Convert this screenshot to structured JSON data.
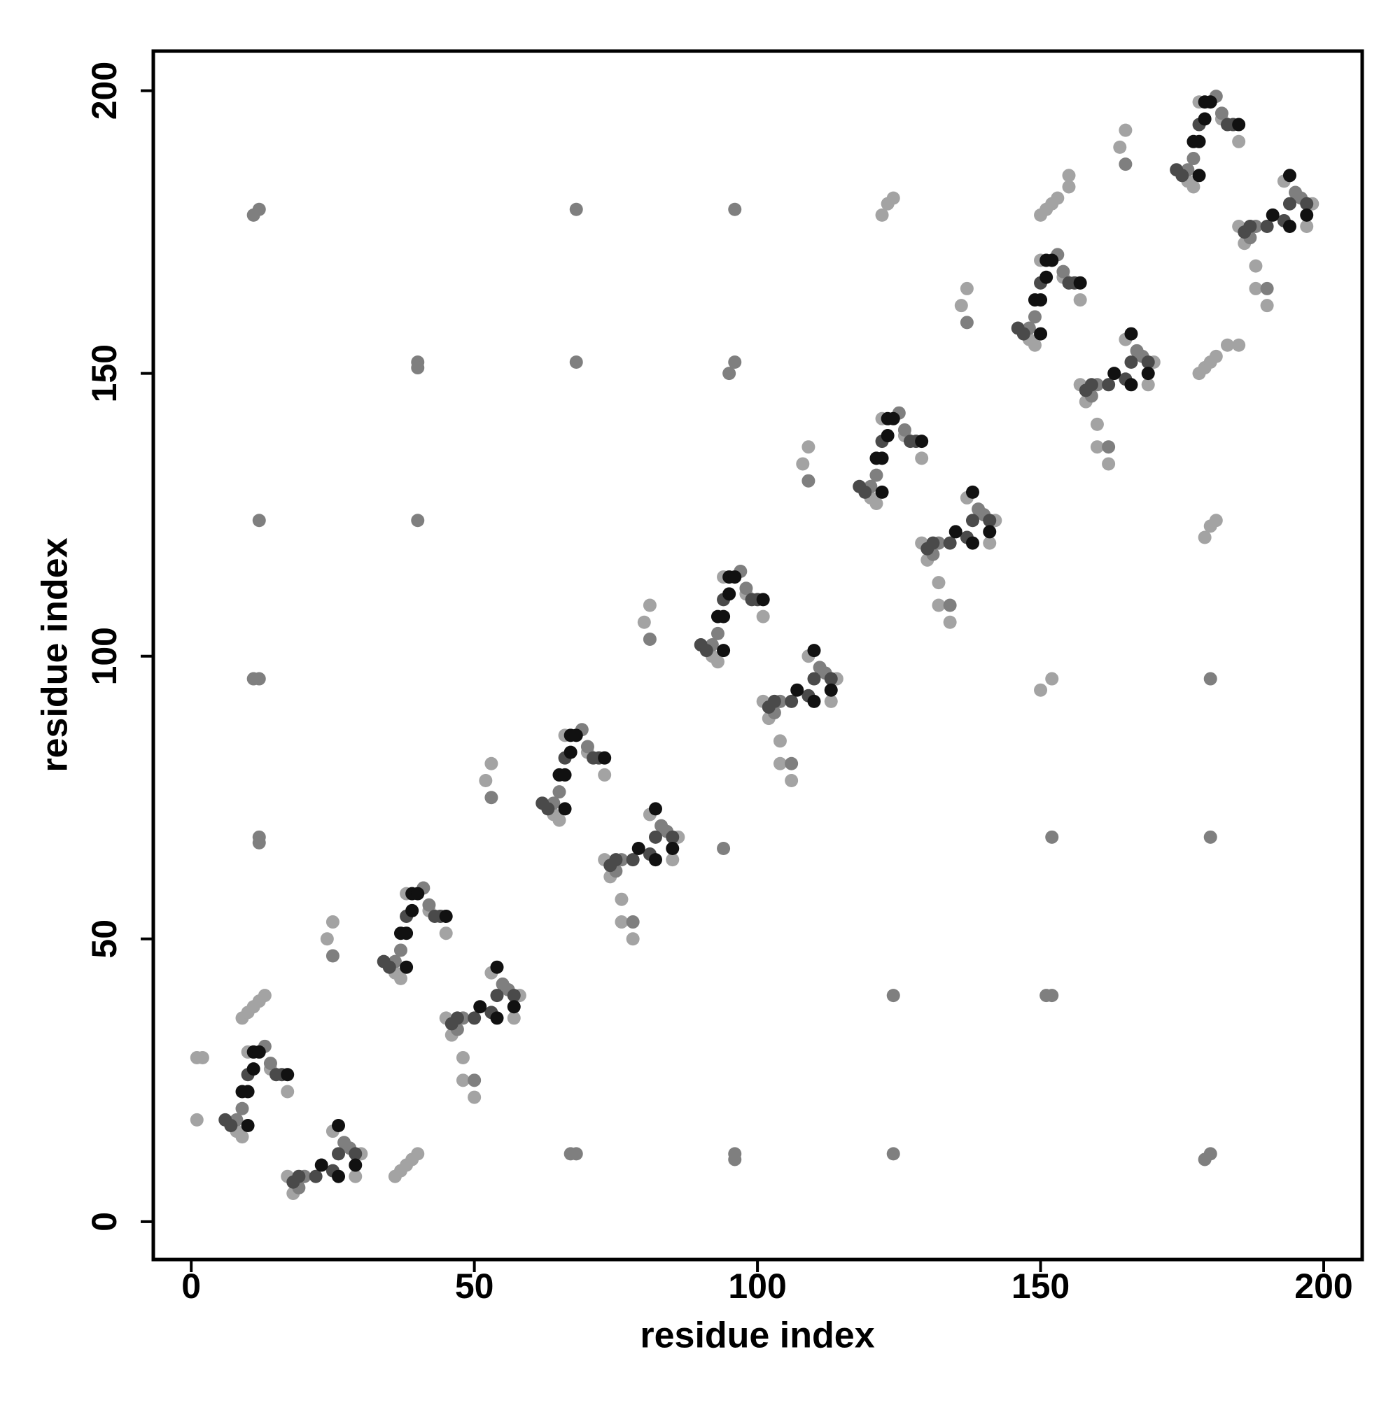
{
  "chart_data": {
    "type": "scatter",
    "xlabel": "residue index",
    "ylabel": "residue index",
    "xlim": [
      -6.7,
      206.8
    ],
    "ylim": [
      -6.7,
      207
    ],
    "xticks": [
      0,
      50,
      100,
      150,
      200
    ],
    "yticks": [
      0,
      50,
      100,
      150,
      200
    ],
    "grid": false,
    "series": [
      {
        "color": "#a3a3a3",
        "x": [
          8,
          9,
          10,
          14,
          17,
          36,
          37,
          38,
          42,
          45,
          24,
          25,
          64,
          65,
          66,
          70,
          73,
          52,
          53,
          92,
          93,
          94,
          98,
          101,
          80,
          81,
          120,
          121,
          122,
          126,
          129,
          108,
          109,
          148,
          149,
          150,
          154,
          157,
          136,
          137,
          176,
          177,
          178,
          182,
          185,
          164,
          165,
          17,
          18,
          25,
          30,
          29,
          45,
          46,
          53,
          58,
          57,
          48,
          48,
          50,
          73,
          74,
          81,
          86,
          85,
          76,
          76,
          78,
          101,
          102,
          109,
          114,
          113,
          104,
          104,
          106,
          129,
          130,
          137,
          142,
          141,
          132,
          132,
          134,
          157,
          158,
          165,
          170,
          169,
          160,
          160,
          162,
          185,
          186,
          193,
          198,
          197,
          188,
          188,
          190,
          1,
          2,
          1,
          152,
          150,
          9,
          10,
          11,
          12,
          13,
          36,
          37,
          38,
          39,
          40,
          150,
          151,
          152,
          153,
          155,
          155,
          178,
          179,
          180,
          181,
          183,
          185,
          122,
          123,
          124,
          179,
          180,
          181
        ],
        "y": [
          16,
          15,
          30,
          27,
          23,
          44,
          43,
          58,
          55,
          51,
          50,
          53,
          72,
          71,
          86,
          83,
          79,
          78,
          81,
          100,
          99,
          114,
          111,
          107,
          106,
          109,
          128,
          127,
          142,
          139,
          135,
          134,
          137,
          156,
          155,
          170,
          167,
          163,
          162,
          165,
          184,
          183,
          198,
          195,
          191,
          190,
          193,
          8,
          5,
          16,
          12,
          8,
          36,
          33,
          44,
          40,
          36,
          29,
          25,
          22,
          64,
          61,
          72,
          68,
          64,
          57,
          53,
          50,
          92,
          89,
          100,
          96,
          92,
          85,
          81,
          78,
          120,
          117,
          128,
          124,
          120,
          113,
          109,
          106,
          148,
          145,
          156,
          152,
          148,
          141,
          137,
          134,
          176,
          173,
          184,
          180,
          176,
          169,
          165,
          162,
          29,
          29,
          18,
          96,
          94,
          36,
          37,
          38,
          39,
          40,
          8,
          9,
          10,
          11,
          12,
          178,
          179,
          180,
          181,
          183,
          185,
          150,
          151,
          152,
          153,
          155,
          155,
          178,
          180,
          181,
          121,
          123,
          124
        ]
      },
      {
        "color": "#7f7f7f",
        "x": [
          8,
          9,
          13,
          14,
          36,
          37,
          41,
          42,
          25,
          64,
          65,
          69,
          70,
          53,
          92,
          93,
          97,
          98,
          81,
          120,
          121,
          125,
          126,
          109,
          148,
          149,
          153,
          154,
          137,
          176,
          177,
          181,
          182,
          165,
          19,
          20,
          28,
          27,
          47,
          48,
          56,
          55,
          50,
          75,
          76,
          84,
          83,
          78,
          103,
          104,
          112,
          111,
          106,
          131,
          132,
          140,
          139,
          134,
          159,
          160,
          168,
          167,
          162,
          187,
          188,
          196,
          195,
          190,
          12,
          11,
          68,
          96,
          40,
          40,
          68,
          96,
          95,
          12,
          40,
          12,
          11,
          12,
          12,
          94,
          152,
          180,
          180,
          124,
          152,
          151,
          68,
          67,
          96,
          96,
          124,
          180,
          179
        ],
        "y": [
          18,
          20,
          31,
          28,
          46,
          48,
          59,
          56,
          47,
          74,
          76,
          87,
          84,
          75,
          102,
          104,
          115,
          112,
          103,
          130,
          132,
          143,
          140,
          131,
          158,
          160,
          171,
          168,
          159,
          186,
          188,
          199,
          196,
          187,
          6,
          8,
          13,
          14,
          34,
          36,
          41,
          42,
          25,
          62,
          64,
          69,
          70,
          53,
          90,
          92,
          97,
          98,
          81,
          118,
          120,
          125,
          126,
          109,
          146,
          148,
          153,
          154,
          137,
          174,
          176,
          181,
          182,
          165,
          179,
          178,
          179,
          179,
          152,
          151,
          152,
          152,
          150,
          124,
          124,
          96,
          96,
          68,
          67,
          66,
          68,
          68,
          96,
          40,
          40,
          40,
          12,
          12,
          12,
          11,
          12,
          12,
          11
        ]
      },
      {
        "color": "#4a4a4a",
        "x": [
          6,
          7,
          10,
          15,
          16,
          34,
          35,
          38,
          43,
          44,
          62,
          63,
          66,
          71,
          72,
          90,
          91,
          94,
          99,
          100,
          118,
          119,
          122,
          127,
          128,
          146,
          147,
          150,
          155,
          156,
          174,
          175,
          178,
          183,
          184,
          18,
          19,
          22,
          25,
          26,
          29,
          46,
          47,
          50,
          53,
          54,
          57,
          74,
          75,
          78,
          81,
          82,
          85,
          102,
          103,
          106,
          109,
          110,
          113,
          130,
          131,
          134,
          137,
          138,
          141,
          158,
          159,
          162,
          165,
          166,
          169,
          186,
          187,
          190,
          193,
          194,
          197
        ],
        "y": [
          18,
          17,
          26,
          26,
          26,
          46,
          45,
          54,
          54,
          54,
          74,
          73,
          82,
          82,
          82,
          102,
          101,
          110,
          110,
          110,
          130,
          129,
          138,
          138,
          138,
          158,
          157,
          166,
          166,
          166,
          186,
          185,
          194,
          194,
          194,
          7,
          8,
          8,
          9,
          12,
          12,
          35,
          36,
          36,
          37,
          40,
          40,
          63,
          64,
          64,
          65,
          68,
          68,
          91,
          92,
          92,
          93,
          96,
          96,
          119,
          120,
          120,
          121,
          124,
          124,
          147,
          148,
          148,
          149,
          152,
          152,
          175,
          176,
          176,
          177,
          180,
          180
        ]
      },
      {
        "color": "#111111",
        "x": [
          9,
          10,
          11,
          11,
          12,
          17,
          10,
          37,
          38,
          39,
          39,
          40,
          45,
          38,
          65,
          66,
          67,
          67,
          68,
          73,
          66,
          93,
          94,
          95,
          95,
          96,
          101,
          94,
          121,
          122,
          123,
          123,
          124,
          129,
          122,
          149,
          150,
          151,
          151,
          152,
          157,
          150,
          177,
          178,
          179,
          179,
          180,
          185,
          178,
          23,
          26,
          26,
          29,
          51,
          54,
          54,
          57,
          79,
          82,
          82,
          85,
          107,
          110,
          110,
          113,
          135,
          138,
          138,
          141,
          163,
          166,
          166,
          169,
          191,
          194,
          194,
          197
        ],
        "y": [
          23,
          23,
          27,
          30,
          30,
          26,
          17,
          51,
          51,
          55,
          58,
          58,
          54,
          45,
          79,
          79,
          83,
          86,
          86,
          82,
          73,
          107,
          107,
          111,
          114,
          114,
          110,
          101,
          135,
          135,
          139,
          142,
          142,
          138,
          129,
          163,
          163,
          167,
          170,
          170,
          166,
          157,
          191,
          191,
          195,
          198,
          198,
          194,
          185,
          10,
          8,
          17,
          10,
          38,
          36,
          45,
          38,
          66,
          64,
          73,
          66,
          94,
          92,
          101,
          94,
          122,
          120,
          129,
          122,
          150,
          148,
          157,
          150,
          178,
          176,
          185,
          178
        ]
      }
    ]
  }
}
